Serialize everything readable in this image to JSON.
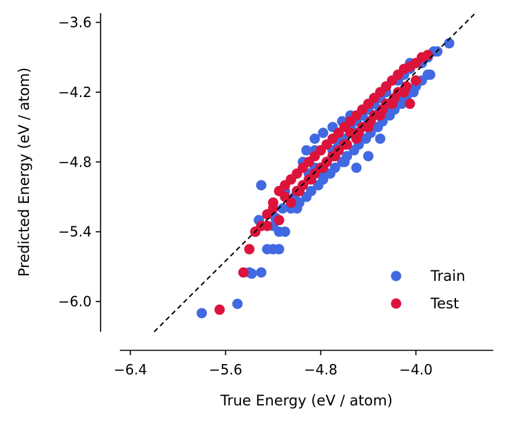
{
  "chart_data": {
    "type": "scatter",
    "title": "",
    "xlabel": "True Energy (eV / atom)",
    "ylabel": "Predicted Energy (eV / atom)",
    "xlim": [
      -6.5,
      -3.35
    ],
    "ylim": [
      -6.26,
      -3.52
    ],
    "xticks": [
      -6.4,
      -5.6,
      -4.8,
      -4.0
    ],
    "xtick_labels": [
      "−6.4",
      "−5.6",
      "−4.8",
      "−4.0"
    ],
    "yticks": [
      -3.6,
      -4.2,
      -4.8,
      -5.4,
      -6.0
    ],
    "ytick_labels": [
      "−3.6",
      "−4.2",
      "−4.8",
      "−5.4",
      "−6.0"
    ],
    "reference_line": {
      "style": "dashed",
      "color": "#000000",
      "x": [
        -6.2,
        -3.5
      ],
      "y": [
        -6.26,
        -3.52
      ]
    },
    "legend": {
      "position": "bottom-right",
      "entries": [
        "Train",
        "Test"
      ]
    },
    "series": [
      {
        "name": "Train",
        "color": "#4169e1",
        "x": [
          -5.8,
          -5.5,
          -5.4,
          -5.38,
          -5.3,
          -5.25,
          -5.2,
          -5.15,
          -5.1,
          -5.35,
          -5.32,
          -5.2,
          -5.18,
          -5.15,
          -5.0,
          -5.02,
          -5.1,
          -4.95,
          -4.9,
          -4.85,
          -4.8,
          -4.75,
          -4.7,
          -4.65,
          -4.6,
          -4.55,
          -4.5,
          -4.45,
          -4.4,
          -4.35,
          -4.3,
          -4.25,
          -4.2,
          -4.15,
          -4.1,
          -4.05,
          -4.0,
          -3.95,
          -3.9,
          -3.85,
          -3.82,
          -3.72,
          -3.88,
          -3.95,
          -4.02,
          -4.08,
          -4.12,
          -4.18,
          -4.22,
          -4.28,
          -4.32,
          -4.38,
          -4.42,
          -4.48,
          -4.52,
          -4.58,
          -4.62,
          -4.68,
          -4.72,
          -4.78,
          -4.82,
          -4.88,
          -4.92,
          -4.98,
          -5.05,
          -5.12,
          -4.55,
          -4.62,
          -4.7,
          -4.78,
          -4.85,
          -4.92,
          -4.6,
          -4.5,
          -4.4,
          -4.3,
          -4.2,
          -4.1,
          -4.0,
          -3.9,
          -4.35,
          -4.25,
          -4.15,
          -4.05,
          -4.45,
          -4.55,
          -4.65,
          -4.75,
          -4.85,
          -4.95,
          -5.05,
          -5.2,
          -5.3,
          -4.4,
          -4.5,
          -4.6,
          -4.7,
          -4.8,
          -4.3,
          -4.2,
          -4.1,
          -4.0
        ],
        "y": [
          -6.1,
          -6.02,
          -5.75,
          -5.76,
          -5.75,
          -5.55,
          -5.55,
          -5.55,
          -5.4,
          -5.4,
          -5.3,
          -5.35,
          -5.28,
          -5.4,
          -5.2,
          -5.1,
          -5.05,
          -5.0,
          -4.9,
          -4.85,
          -4.85,
          -4.8,
          -4.7,
          -4.65,
          -4.6,
          -4.5,
          -4.45,
          -4.4,
          -4.35,
          -4.3,
          -4.25,
          -4.2,
          -4.1,
          -4.1,
          -4.05,
          -4.0,
          -3.95,
          -3.95,
          -3.9,
          -3.85,
          -3.85,
          -3.78,
          -4.05,
          -4.1,
          -4.2,
          -4.25,
          -4.3,
          -4.35,
          -4.4,
          -4.45,
          -4.5,
          -4.55,
          -4.6,
          -4.65,
          -4.7,
          -4.75,
          -4.8,
          -4.85,
          -4.9,
          -4.95,
          -5.0,
          -5.05,
          -5.1,
          -5.15,
          -5.2,
          -5.2,
          -4.4,
          -4.45,
          -4.5,
          -4.55,
          -4.6,
          -4.7,
          -4.8,
          -4.85,
          -4.75,
          -4.6,
          -4.35,
          -4.25,
          -4.15,
          -4.05,
          -4.25,
          -4.15,
          -4.05,
          -3.95,
          -4.35,
          -4.45,
          -4.6,
          -4.65,
          -4.7,
          -4.8,
          -4.95,
          -5.15,
          -5.0,
          -4.45,
          -4.55,
          -4.65,
          -4.75,
          -4.9,
          -4.35,
          -4.3,
          -4.2,
          -4.1
        ]
      },
      {
        "name": "Test",
        "color": "#dc143c",
        "x": [
          -5.65,
          -5.45,
          -5.4,
          -5.35,
          -5.25,
          -5.3,
          -5.25,
          -5.2,
          -5.15,
          -5.1,
          -5.05,
          -5.0,
          -4.95,
          -4.9,
          -4.85,
          -4.8,
          -4.75,
          -4.7,
          -4.65,
          -4.6,
          -4.55,
          -4.5,
          -4.45,
          -4.4,
          -4.35,
          -4.3,
          -4.25,
          -4.2,
          -4.15,
          -4.1,
          -4.05,
          -4.0,
          -3.95,
          -3.9,
          -4.6,
          -4.7,
          -4.8,
          -4.9,
          -5.0,
          -5.1,
          -4.5,
          -4.4,
          -4.3,
          -4.2,
          -4.1,
          -4.0,
          -4.55,
          -4.65,
          -4.75,
          -4.85,
          -4.95,
          -4.45,
          -4.35,
          -4.25,
          -4.15,
          -4.05,
          -5.2,
          -5.15,
          -5.05,
          -4.98,
          -4.88,
          -4.78,
          -4.68,
          -4.58,
          -4.48,
          -4.38,
          -4.28,
          -4.18,
          -4.08
        ],
        "y": [
          -6.07,
          -5.75,
          -5.55,
          -5.4,
          -5.35,
          -5.35,
          -5.25,
          -5.15,
          -5.05,
          -5.0,
          -4.95,
          -4.9,
          -4.85,
          -4.8,
          -4.75,
          -4.7,
          -4.65,
          -4.6,
          -4.55,
          -4.5,
          -4.45,
          -4.4,
          -4.35,
          -4.3,
          -4.25,
          -4.2,
          -4.15,
          -4.1,
          -4.05,
          -4.0,
          -3.98,
          -3.95,
          -3.9,
          -3.88,
          -4.65,
          -4.75,
          -4.85,
          -4.95,
          -5.05,
          -5.1,
          -4.6,
          -4.5,
          -4.4,
          -4.3,
          -4.2,
          -4.1,
          -4.55,
          -4.7,
          -4.8,
          -4.9,
          -5.0,
          -4.5,
          -4.4,
          -4.3,
          -4.2,
          -4.3,
          -5.2,
          -5.3,
          -5.15,
          -5.05,
          -4.95,
          -4.85,
          -4.75,
          -4.65,
          -4.55,
          -4.45,
          -4.35,
          -4.25,
          -4.15
        ]
      }
    ]
  }
}
